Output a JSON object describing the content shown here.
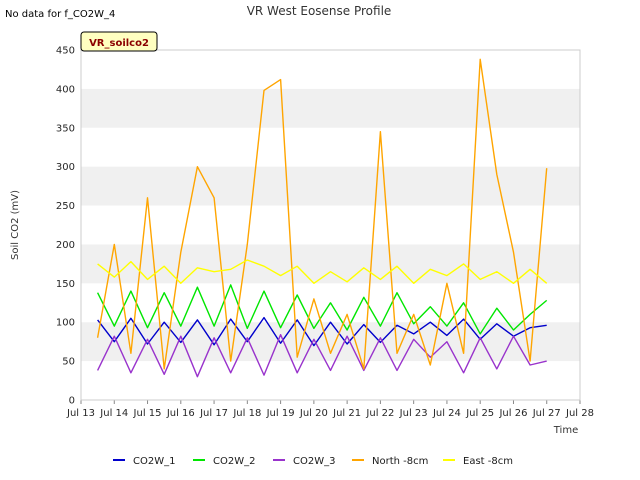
{
  "note": "No data for f_CO2W_4",
  "tag_label": "VR_soilco2",
  "chart_data": {
    "type": "line",
    "title": "VR West Eosense Profile",
    "xlabel": "Time",
    "ylabel": "Soil CO2 (mV)",
    "xlim": [
      13,
      28
    ],
    "ylim": [
      0,
      450
    ],
    "grid": "horizontal bands",
    "legend_position": "bottom",
    "x_ticks": [
      "Jul 13",
      "Jul 14",
      "Jul 15",
      "Jul 16",
      "Jul 17",
      "Jul 18",
      "Jul 19",
      "Jul 20",
      "Jul 21",
      "Jul 22",
      "Jul 23",
      "Jul 24",
      "Jul 25",
      "Jul 26",
      "Jul 27",
      "Jul 28"
    ],
    "y_ticks": [
      0,
      50,
      100,
      150,
      200,
      250,
      300,
      350,
      400,
      450
    ],
    "x": [
      13.5,
      14,
      14.5,
      15,
      15.5,
      16,
      16.5,
      17,
      17.5,
      18,
      18.5,
      19,
      19.5,
      20,
      20.5,
      21,
      21.5,
      22,
      22.5,
      23,
      23.5,
      24,
      24.5,
      25,
      25.5,
      26,
      26.5,
      27
    ],
    "series": [
      {
        "name": "CO2W_1",
        "color": "#0000cc",
        "values": [
          103,
          75,
          105,
          72,
          100,
          74,
          103,
          71,
          104,
          75,
          106,
          73,
          103,
          70,
          100,
          72,
          97,
          74,
          96,
          85,
          100,
          83,
          104,
          78,
          98,
          82,
          93,
          96
        ]
      },
      {
        "name": "CO2W_2",
        "color": "#00e600",
        "values": [
          138,
          95,
          140,
          93,
          138,
          95,
          145,
          95,
          148,
          92,
          140,
          93,
          135,
          92,
          125,
          90,
          132,
          95,
          138,
          98,
          120,
          95,
          125,
          85,
          118,
          90,
          110,
          128
        ]
      },
      {
        "name": "CO2W_3",
        "color": "#9933cc",
        "values": [
          38,
          82,
          35,
          78,
          33,
          82,
          30,
          80,
          35,
          80,
          32,
          84,
          35,
          78,
          38,
          82,
          38,
          80,
          38,
          78,
          55,
          75,
          35,
          80,
          40,
          82,
          45,
          50
        ]
      },
      {
        "name": "North -8cm",
        "color": "#ffa500",
        "values": [
          80,
          200,
          60,
          260,
          40,
          190,
          300,
          260,
          50,
          200,
          398,
          412,
          55,
          130,
          60,
          110,
          40,
          345,
          60,
          110,
          45,
          150,
          60,
          438,
          290,
          190,
          50,
          298
        ]
      },
      {
        "name": "East -8cm",
        "color": "#ffff00",
        "values": [
          175,
          158,
          178,
          155,
          172,
          150,
          170,
          165,
          168,
          180,
          172,
          160,
          172,
          150,
          165,
          152,
          170,
          155,
          172,
          150,
          168,
          160,
          175,
          155,
          165,
          150,
          168,
          150
        ]
      }
    ]
  }
}
